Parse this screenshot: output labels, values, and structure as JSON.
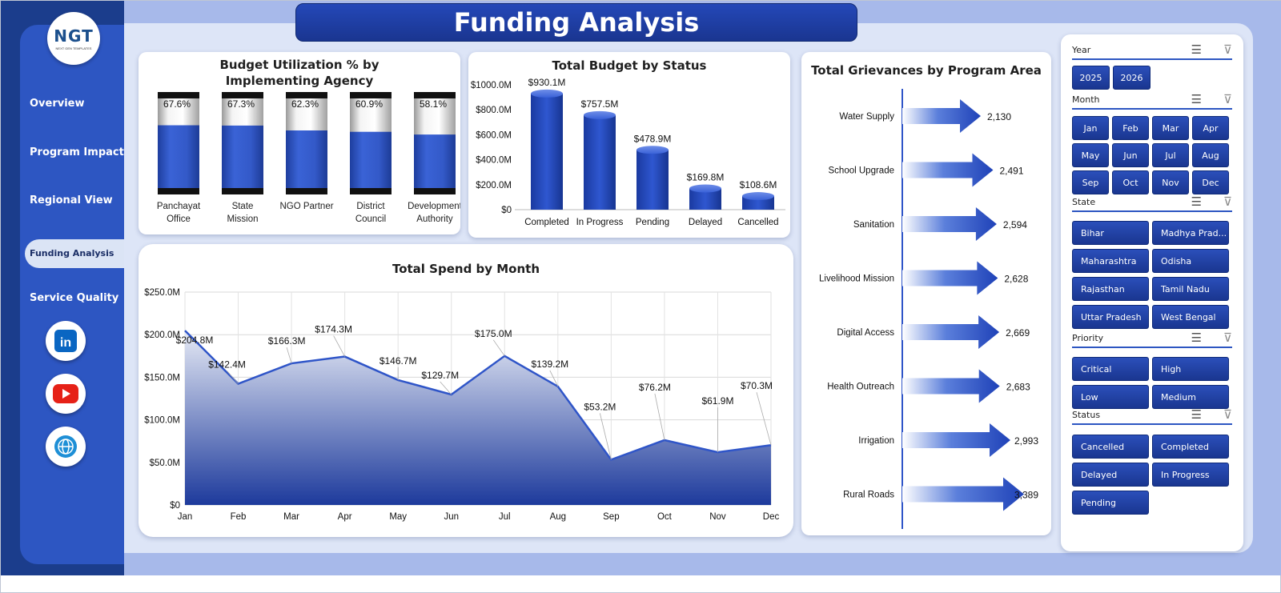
{
  "logo": {
    "text": "NGT",
    "subtext": "NEXT GEN TEMPLATES"
  },
  "nav": {
    "items": [
      "Overview",
      "Program Impact",
      "Regional View",
      "Funding Analysis",
      "Service Quality"
    ],
    "active": "Funding Analysis"
  },
  "social": [
    "linkedin-icon",
    "youtube-icon",
    "globe-icon"
  ],
  "header": {
    "title": "Funding Analysis"
  },
  "budget_util": {
    "title": "Budget Utilization % by Implementing Agency",
    "chart_data": {
      "type": "bar",
      "categories": [
        "Panchayat Office",
        "State Mission",
        "NGO Partner",
        "District Council",
        "Development Authority"
      ],
      "values": [
        67.6,
        67.3,
        62.3,
        60.9,
        58.1
      ],
      "labels": [
        "67.6%",
        "67.3%",
        "62.3%",
        "60.9%",
        "58.1%"
      ],
      "ylim": [
        0,
        100
      ]
    }
  },
  "budget_status": {
    "title": "Total Budget by Status",
    "chart_data": {
      "type": "bar",
      "categories": [
        "Completed",
        "In Progress",
        "Pending",
        "Delayed",
        "Cancelled"
      ],
      "values": [
        930.1,
        757.5,
        478.9,
        169.8,
        108.6
      ],
      "labels": [
        "$930.1M",
        "$757.5M",
        "$478.9M",
        "$169.8M",
        "$108.6M"
      ],
      "yticks": [
        "$0",
        "$200.0M",
        "$400.0M",
        "$600.0M",
        "$800.0M",
        "$1000.0M"
      ],
      "ylim": [
        0,
        1000
      ]
    }
  },
  "spend_month": {
    "title": "Total Spend by Month",
    "chart_data": {
      "type": "area",
      "categories": [
        "Jan",
        "Feb",
        "Mar",
        "Apr",
        "May",
        "Jun",
        "Jul",
        "Aug",
        "Sep",
        "Oct",
        "Nov",
        "Dec"
      ],
      "values": [
        204.8,
        142.4,
        166.3,
        174.3,
        146.7,
        129.7,
        175.0,
        139.2,
        53.2,
        76.2,
        61.9,
        70.3
      ],
      "labels": [
        "$204.8M",
        "$142.4M",
        "$166.3M",
        "$174.3M",
        "$146.7M",
        "$129.7M",
        "$175.0M",
        "$139.2M",
        "$53.2M",
        "$76.2M",
        "$61.9M",
        "$70.3M"
      ],
      "yticks": [
        "$0",
        "$50.0M",
        "$100.0M",
        "$150.0M",
        "$200.0M",
        "$250.0M"
      ],
      "ylim": [
        0,
        250
      ],
      "grid": true
    }
  },
  "grievances": {
    "title": "Total Grievances by Program Area",
    "chart_data": {
      "type": "bar",
      "categories": [
        "Water Supply",
        "School Upgrade",
        "Sanitation",
        "Livelihood Mission",
        "Digital Access",
        "Health Outreach",
        "Irrigation",
        "Rural Roads"
      ],
      "values": [
        2130,
        2491,
        2594,
        2628,
        2669,
        2683,
        2993,
        3389
      ],
      "labels": [
        "2,130",
        "2,491",
        "2,594",
        "2,628",
        "2,669",
        "2,683",
        "2,993",
        "3,389"
      ]
    }
  },
  "slicers": {
    "year": {
      "label": "Year",
      "options": [
        "2025",
        "2026"
      ]
    },
    "month": {
      "label": "Month",
      "options": [
        "Jan",
        "Feb",
        "Mar",
        "Apr",
        "May",
        "Jun",
        "Jul",
        "Aug",
        "Sep",
        "Oct",
        "Nov",
        "Dec"
      ]
    },
    "state": {
      "label": "State",
      "options": [
        "Bihar",
        "Madhya Prad...",
        "Maharashtra",
        "Odisha",
        "Rajasthan",
        "Tamil Nadu",
        "Uttar Pradesh",
        "West Bengal"
      ]
    },
    "priority": {
      "label": "Priority",
      "options": [
        "Critical",
        "High",
        "Low",
        "Medium"
      ]
    },
    "status": {
      "label": "Status",
      "options": [
        "Cancelled",
        "Completed",
        "Delayed",
        "In Progress",
        "Pending"
      ]
    }
  },
  "colors": {
    "accent": "#2d56c2",
    "dark": "#1b3d8c",
    "bar": "#2f55c8"
  }
}
